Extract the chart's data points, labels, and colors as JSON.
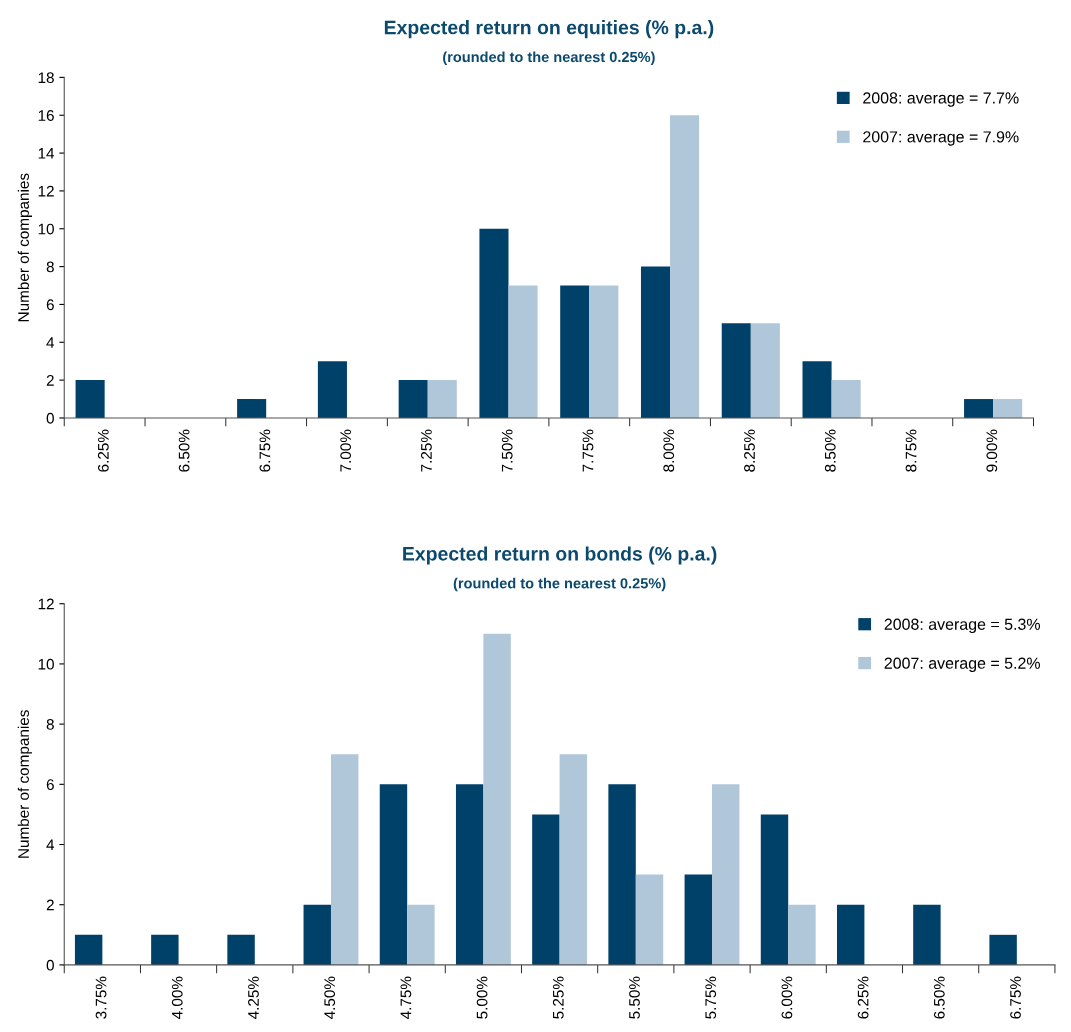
{
  "chart_data": [
    {
      "type": "bar",
      "title": "Expected return on equities (% p.a.)",
      "subtitle": "(rounded to the nearest 0.25%)",
      "ylabel": "Number of companies",
      "categories": [
        "6.25%",
        "6.50%",
        "6.75%",
        "7.00%",
        "7.25%",
        "7.50%",
        "7.75%",
        "8.00%",
        "8.25%",
        "8.50%",
        "8.75%",
        "9.00%"
      ],
      "series": [
        {
          "name": "2008: average = 7.7%",
          "color": "#00416a",
          "values": [
            2,
            0,
            1,
            3,
            2,
            10,
            7,
            8,
            5,
            3,
            0,
            1
          ]
        },
        {
          "name": "2007: average = 7.9%",
          "color": "#b0c6d9",
          "values": [
            0,
            0,
            0,
            0,
            2,
            7,
            7,
            16,
            5,
            2,
            0,
            1
          ]
        }
      ],
      "ylim": [
        0,
        18
      ],
      "yticks": [
        0,
        2,
        4,
        6,
        8,
        10,
        12,
        14,
        16,
        18
      ],
      "grid": false,
      "legend": "top right"
    },
    {
      "type": "bar",
      "title": "Expected return on bonds (% p.a.)",
      "subtitle": "(rounded to the nearest 0.25%)",
      "ylabel": "Number of companies",
      "categories": [
        "3.75%",
        "4.00%",
        "4.25%",
        "4.50%",
        "4.75%",
        "5.00%",
        "5.25%",
        "5.50%",
        "5.75%",
        "6.00%",
        "6.25%",
        "6.50%",
        "6.75%"
      ],
      "series": [
        {
          "name": "2008: average = 5.3%",
          "color": "#00416a",
          "values": [
            1,
            1,
            1,
            2,
            6,
            6,
            5,
            6,
            3,
            5,
            2,
            2,
            1
          ]
        },
        {
          "name": "2007: average = 5.2%",
          "color": "#b0c6d9",
          "values": [
            0,
            0,
            0,
            7,
            2,
            11,
            7,
            3,
            6,
            2,
            0,
            0,
            0
          ]
        }
      ],
      "ylim": [
        0,
        12
      ],
      "yticks": [
        0,
        2,
        4,
        6,
        8,
        10,
        12
      ],
      "grid": false,
      "legend": "top right"
    }
  ]
}
